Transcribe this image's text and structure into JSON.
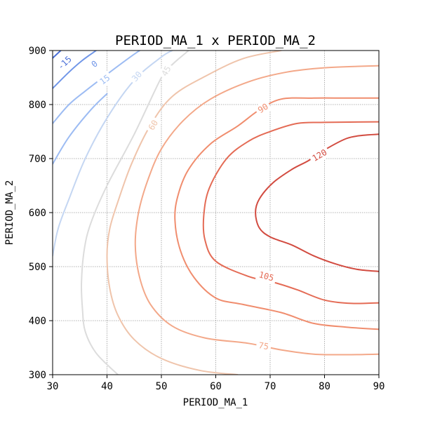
{
  "chart_data": {
    "type": "contour",
    "title": "PERIOD_MA_1 x PERIOD_MA_2",
    "xlabel": "PERIOD_MA_1",
    "ylabel": "PERIOD_MA_2",
    "xlim": [
      30,
      90
    ],
    "ylim": [
      300,
      900
    ],
    "xticks": [
      30,
      40,
      50,
      60,
      70,
      80,
      90
    ],
    "yticks": [
      300,
      400,
      500,
      600,
      700,
      800,
      900
    ],
    "grid": true,
    "levels": [
      {
        "level": -15,
        "label": "-15",
        "color": "#4a6fd8",
        "labeled": true,
        "label_at": [
          32.2,
          877
        ],
        "points": [
          [
            30,
            886
          ],
          [
            31.5,
            900
          ]
        ]
      },
      {
        "level": 0,
        "label": "0",
        "color": "#7096e8",
        "labeled": true,
        "label_at": [
          37.7,
          875
        ],
        "points": [
          [
            30,
            830
          ],
          [
            33,
            860
          ],
          [
            35.5,
            882
          ],
          [
            38,
            900
          ]
        ]
      },
      {
        "level": 15,
        "label": "15",
        "color": "#9dbcf3",
        "labeled": true,
        "label_at": [
          39.6,
          846
        ],
        "points": [
          [
            30,
            765
          ],
          [
            33,
            800
          ],
          [
            36,
            825
          ],
          [
            40,
            856
          ],
          [
            44,
            886
          ],
          [
            46,
            900
          ]
        ]
      },
      {
        "level": 15,
        "label": "15",
        "color": "#9dbcf3",
        "labeled": false,
        "points": [
          [
            30,
            690
          ],
          [
            33,
            740
          ],
          [
            37,
            790
          ],
          [
            40,
            820
          ]
        ]
      },
      {
        "level": 30,
        "label": "30",
        "color": "#c4d6f2",
        "labeled": true,
        "label_at": [
          45.5,
          852
        ],
        "points": [
          [
            30,
            520
          ],
          [
            31,
            570
          ],
          [
            33,
            625
          ],
          [
            36,
            700
          ],
          [
            40,
            775
          ],
          [
            45,
            845
          ],
          [
            50,
            888
          ],
          [
            52,
            900
          ]
        ]
      },
      {
        "level": 45,
        "label": "45",
        "color": "#dcdcdc",
        "labeled": true,
        "label_at": [
          50.9,
          862
        ],
        "points": [
          [
            42,
            300
          ],
          [
            38,
            340
          ],
          [
            36,
            380
          ],
          [
            35.5,
            420
          ],
          [
            35.3,
            470
          ],
          [
            35.8,
            530
          ],
          [
            37,
            580
          ],
          [
            40,
            650
          ],
          [
            45,
            745
          ],
          [
            50,
            850
          ],
          [
            52,
            874
          ],
          [
            55,
            900
          ]
        ]
      },
      {
        "level": 60,
        "label": "60",
        "color": "#efc4ab",
        "labeled": true,
        "label_at": [
          48.5,
          762
        ],
        "points": [
          [
            64,
            300
          ],
          [
            57,
            308
          ],
          [
            50,
            330
          ],
          [
            45,
            365
          ],
          [
            42,
            410
          ],
          [
            40.5,
            460
          ],
          [
            40,
            520
          ],
          [
            40.5,
            570
          ],
          [
            42,
            620
          ],
          [
            44.5,
            690
          ],
          [
            48,
            762
          ],
          [
            52,
            815
          ],
          [
            58,
            852
          ],
          [
            65,
            885
          ],
          [
            72,
            900
          ]
        ]
      },
      {
        "level": 75,
        "label": "75",
        "color": "#f3a889",
        "labeled": true,
        "label_at": [
          68.8,
          353
        ],
        "points": [
          [
            90,
            338
          ],
          [
            84,
            337
          ],
          [
            78,
            338
          ],
          [
            72,
            346
          ],
          [
            66,
            358
          ],
          [
            58,
            368
          ],
          [
            52,
            390
          ],
          [
            48,
            430
          ],
          [
            46,
            480
          ],
          [
            45.2,
            540
          ],
          [
            45.8,
            600
          ],
          [
            47.5,
            660
          ],
          [
            50,
            718
          ],
          [
            54,
            770
          ],
          [
            59,
            810
          ],
          [
            66,
            842
          ],
          [
            73,
            860
          ],
          [
            80,
            868
          ],
          [
            90,
            872
          ]
        ]
      },
      {
        "level": 90,
        "label": "90",
        "color": "#f08d6e",
        "labeled": true,
        "label_at": [
          68.7,
          793
        ],
        "points": [
          [
            90,
            384
          ],
          [
            84,
            388
          ],
          [
            78,
            395
          ],
          [
            72,
            415
          ],
          [
            65,
            430
          ],
          [
            60,
            442
          ],
          [
            56,
            480
          ],
          [
            53.5,
            530
          ],
          [
            52.5,
            585
          ],
          [
            53,
            630
          ],
          [
            55,
            680
          ],
          [
            59,
            727
          ],
          [
            64,
            760
          ],
          [
            68,
            790
          ],
          [
            72,
            810
          ],
          [
            78,
            812
          ],
          [
            84,
            812
          ],
          [
            90,
            812
          ]
        ]
      },
      {
        "level": 105,
        "label": "105",
        "color": "#e46b55",
        "labeled": true,
        "label_at": [
          69.3,
          482
        ],
        "points": [
          [
            90,
            433
          ],
          [
            85,
            432
          ],
          [
            80,
            438
          ],
          [
            75,
            457
          ],
          [
            71,
            470
          ],
          [
            66,
            482
          ],
          [
            60,
            510
          ],
          [
            58,
            550
          ],
          [
            57.8,
            595
          ],
          [
            58.8,
            645
          ],
          [
            62,
            700
          ],
          [
            66,
            732
          ],
          [
            70,
            750
          ],
          [
            75,
            765
          ],
          [
            80,
            767
          ],
          [
            90,
            768
          ]
        ]
      },
      {
        "level": 120,
        "label": "120",
        "color": "#d24b40",
        "labeled": true,
        "label_at": [
          79.1,
          706
        ],
        "points": [
          [
            90,
            491
          ],
          [
            86,
            495
          ],
          [
            82,
            505
          ],
          [
            78,
            520
          ],
          [
            74,
            540
          ],
          [
            70,
            555
          ],
          [
            68,
            572
          ],
          [
            67.3,
            600
          ],
          [
            68,
            625
          ],
          [
            70.5,
            655
          ],
          [
            74,
            680
          ],
          [
            77,
            696
          ],
          [
            80,
            716
          ],
          [
            84,
            737
          ],
          [
            87,
            743
          ],
          [
            90,
            745
          ]
        ]
      }
    ]
  }
}
